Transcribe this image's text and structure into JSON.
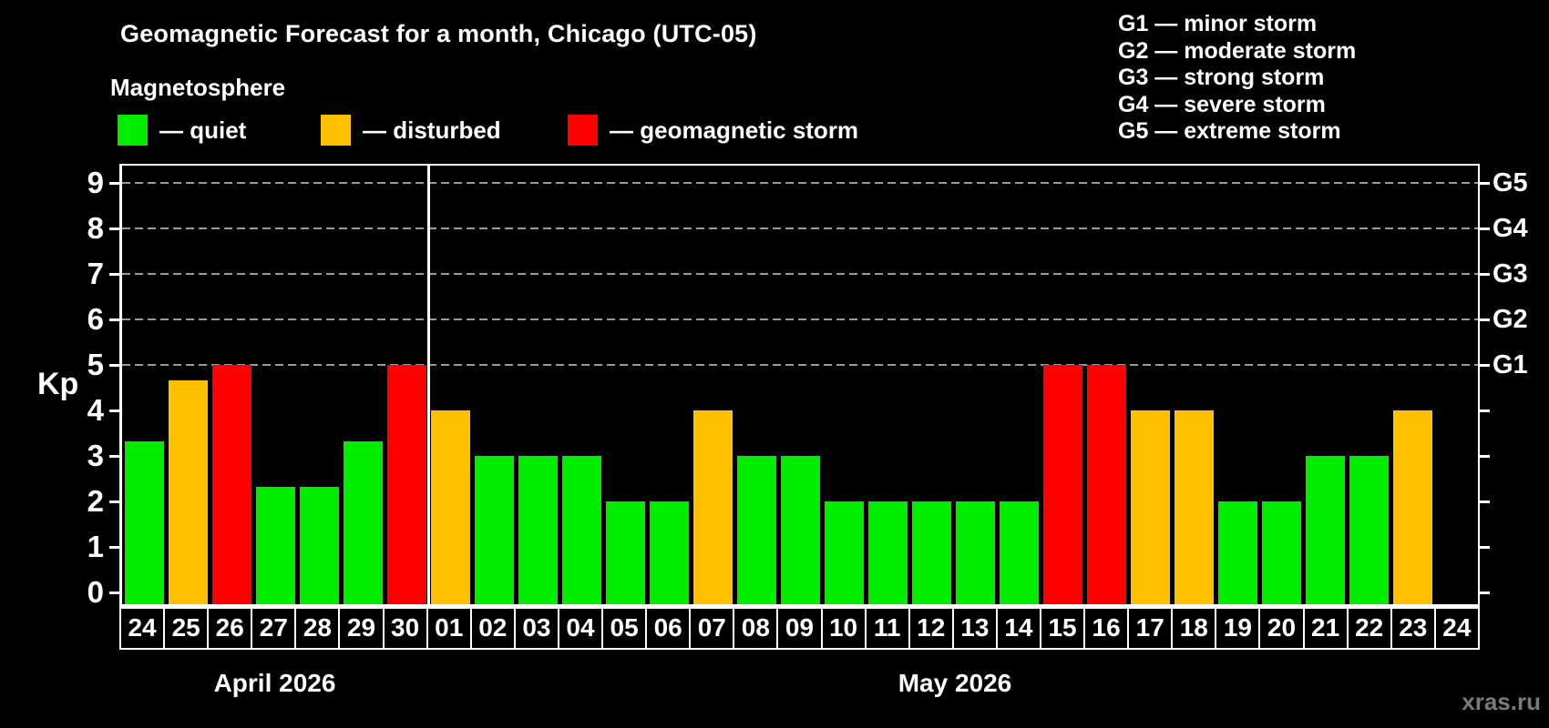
{
  "title": "Geomagnetic Forecast for a month, Chicago (UTC-05)",
  "subtitle": "Magnetosphere",
  "legend": {
    "quiet_label": "— quiet",
    "disturbed_label": "— disturbed",
    "storm_label": "— geomagnetic storm"
  },
  "g_legend": [
    "G1 — minor storm",
    "G2 — moderate storm",
    "G3 — strong storm",
    "G4 — severe storm",
    "G5 — extreme storm"
  ],
  "watermark": "xras.ru",
  "colors": {
    "quiet": "#00ed00",
    "disturbed": "#ffc000",
    "storm": "#ff0000",
    "grid": "#9a9a9a",
    "axis": "#ffffff",
    "background": "#000000",
    "watermark": "#7a7a7a"
  },
  "chart_data": {
    "type": "bar",
    "title": "Geomagnetic Forecast for a month, Chicago (UTC-05)",
    "ylabel": "Kp",
    "ylim": [
      0,
      9
    ],
    "y_ticks": [
      0,
      1,
      2,
      3,
      4,
      5,
      6,
      7,
      8,
      9
    ],
    "grid_levels": [
      5,
      6,
      7,
      8,
      9
    ],
    "right_axis": [
      {
        "kp": 5,
        "label": "G1"
      },
      {
        "kp": 6,
        "label": "G2"
      },
      {
        "kp": 7,
        "label": "G3"
      },
      {
        "kp": 8,
        "label": "G4"
      },
      {
        "kp": 9,
        "label": "G5"
      }
    ],
    "months": [
      {
        "label": "April 2026",
        "days": 7
      },
      {
        "label": "May 2026",
        "days": 24
      }
    ],
    "month_boundary_index": 7,
    "bars": [
      {
        "month": "April 2026",
        "day": "24",
        "kp": 3.33,
        "status": "quiet"
      },
      {
        "month": "April 2026",
        "day": "25",
        "kp": 4.67,
        "status": "disturbed"
      },
      {
        "month": "April 2026",
        "day": "26",
        "kp": 5,
        "status": "storm"
      },
      {
        "month": "April 2026",
        "day": "27",
        "kp": 2.33,
        "status": "quiet"
      },
      {
        "month": "April 2026",
        "day": "28",
        "kp": 2.33,
        "status": "quiet"
      },
      {
        "month": "April 2026",
        "day": "29",
        "kp": 3.33,
        "status": "quiet"
      },
      {
        "month": "April 2026",
        "day": "30",
        "kp": 5,
        "status": "storm"
      },
      {
        "month": "May 2026",
        "day": "01",
        "kp": 4,
        "status": "disturbed"
      },
      {
        "month": "May 2026",
        "day": "02",
        "kp": 3,
        "status": "quiet"
      },
      {
        "month": "May 2026",
        "day": "03",
        "kp": 3,
        "status": "quiet"
      },
      {
        "month": "May 2026",
        "day": "04",
        "kp": 3,
        "status": "quiet"
      },
      {
        "month": "May 2026",
        "day": "05",
        "kp": 2,
        "status": "quiet"
      },
      {
        "month": "May 2026",
        "day": "06",
        "kp": 2,
        "status": "quiet"
      },
      {
        "month": "May 2026",
        "day": "07",
        "kp": 4,
        "status": "disturbed"
      },
      {
        "month": "May 2026",
        "day": "08",
        "kp": 3,
        "status": "quiet"
      },
      {
        "month": "May 2026",
        "day": "09",
        "kp": 3,
        "status": "quiet"
      },
      {
        "month": "May 2026",
        "day": "10",
        "kp": 2,
        "status": "quiet"
      },
      {
        "month": "May 2026",
        "day": "11",
        "kp": 2,
        "status": "quiet"
      },
      {
        "month": "May 2026",
        "day": "12",
        "kp": 2,
        "status": "quiet"
      },
      {
        "month": "May 2026",
        "day": "13",
        "kp": 2,
        "status": "quiet"
      },
      {
        "month": "May 2026",
        "day": "14",
        "kp": 2,
        "status": "quiet"
      },
      {
        "month": "May 2026",
        "day": "15",
        "kp": 5,
        "status": "storm"
      },
      {
        "month": "May 2026",
        "day": "16",
        "kp": 5,
        "status": "storm"
      },
      {
        "month": "May 2026",
        "day": "17",
        "kp": 4,
        "status": "disturbed"
      },
      {
        "month": "May 2026",
        "day": "18",
        "kp": 4,
        "status": "disturbed"
      },
      {
        "month": "May 2026",
        "day": "19",
        "kp": 2,
        "status": "quiet"
      },
      {
        "month": "May 2026",
        "day": "20",
        "kp": 2,
        "status": "quiet"
      },
      {
        "month": "May 2026",
        "day": "21",
        "kp": 3,
        "status": "quiet"
      },
      {
        "month": "May 2026",
        "day": "22",
        "kp": 3,
        "status": "quiet"
      },
      {
        "month": "May 2026",
        "day": "23",
        "kp": 4,
        "status": "disturbed"
      },
      {
        "month": "May 2026",
        "day": "24",
        "kp": null,
        "status": "none"
      }
    ]
  }
}
